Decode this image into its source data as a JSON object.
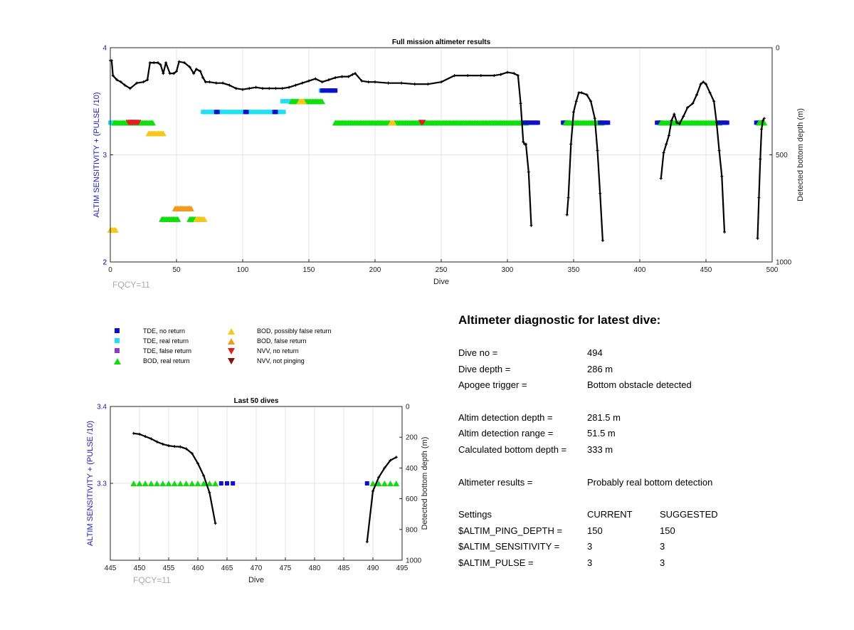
{
  "legend": [
    {
      "label": "TDE, no return",
      "shape": "square",
      "color": "#1010c8"
    },
    {
      "label": "TDE, real return",
      "shape": "square",
      "color": "#22dff2"
    },
    {
      "label": "TDE, false return",
      "shape": "square",
      "color": "#8a3cc8"
    },
    {
      "label": "BOD, real return",
      "shape": "triangle-up",
      "color": "#11dd11"
    },
    {
      "label": "BOD, possibly false return",
      "shape": "triangle-up",
      "color": "#f4c81c"
    },
    {
      "label": "BOD, false return",
      "shape": "triangle-up",
      "color": "#f39a1c"
    },
    {
      "label": "NVV, no return",
      "shape": "triangle-down",
      "color": "#e02020"
    },
    {
      "label": "NVV, not pinging",
      "shape": "triangle-down",
      "color": "#8a1010"
    }
  ],
  "diagnostic": {
    "title": "Altimeter diagnostic for latest dive:",
    "dive_no_label": "Dive no =",
    "dive_no": "494",
    "dive_depth_label": "Dive depth =",
    "dive_depth": "286 m",
    "apogee_label": "Apogee trigger =",
    "apogee": "Bottom obstacle detected",
    "altim_depth_label": "Altim detection depth =",
    "altim_depth": "281.5 m",
    "altim_range_label": "Altim detection range =",
    "altim_range": "51.5 m",
    "calc_bottom_label": "Calculated bottom depth =",
    "calc_bottom": "333 m",
    "results_label": "Altimeter results =",
    "results": "Probably real bottom detection",
    "settings_label": "Settings",
    "current_label": "CURRENT",
    "suggested_label": "SUGGESTED",
    "ping_depth_label": "$ALTIM_PING_DEPTH =",
    "ping_depth_current": "150",
    "ping_depth_suggested": "150",
    "sensitivity_label": "$ALTIM_SENSITIVITY =",
    "sensitivity_current": "3",
    "sensitivity_suggested": "3",
    "pulse_label": "$ALTIM_PULSE =",
    "pulse_current": "3",
    "pulse_suggested": "3"
  },
  "chart_data": [
    {
      "type": "scatter",
      "title": "Full mission altimeter results",
      "xlabel": "Dive",
      "ylabel": "ALTIM SENSITIVITY + (PULSE /10)",
      "y2label": "Detected bottom depth (m)",
      "note": "FQCY=11",
      "xlim": [
        0,
        500
      ],
      "ylim": [
        2,
        4
      ],
      "y2lim": [
        0,
        1000
      ],
      "y2_reversed": true,
      "xticks": [
        0,
        50,
        100,
        150,
        200,
        250,
        300,
        350,
        400,
        450,
        500
      ],
      "yticks": [
        2,
        3,
        4
      ],
      "y2ticks": [
        0,
        500,
        1000
      ],
      "grid": true,
      "marker_groups": [
        {
          "legend": 1,
          "y": 3.3,
          "x_range": [
            0,
            3
          ]
        },
        {
          "legend": 3,
          "y": 3.3,
          "x_range": [
            3,
            32
          ]
        },
        {
          "legend": 6,
          "y": 3.3,
          "x_range": [
            14,
            21
          ]
        },
        {
          "legend": 4,
          "y": 3.2,
          "x_range": [
            29,
            40
          ]
        },
        {
          "legend": 4,
          "y": 2.3,
          "x_range": [
            0,
            4
          ]
        },
        {
          "legend": 3,
          "y": 2.4,
          "x_range": [
            39,
            51
          ]
        },
        {
          "legend": 5,
          "y": 2.5,
          "x_range": [
            49,
            61
          ]
        },
        {
          "legend": 3,
          "y": 2.4,
          "x_range": [
            60,
            68
          ]
        },
        {
          "legend": 4,
          "y": 2.4,
          "x_range": [
            65,
            71
          ]
        },
        {
          "legend": 1,
          "y": 3.4,
          "x_range": [
            70,
            131
          ]
        },
        {
          "legend": 0,
          "y": 3.4,
          "x_range": [
            80,
            81
          ]
        },
        {
          "legend": 0,
          "y": 3.4,
          "x_range": [
            102,
            103
          ]
        },
        {
          "legend": 0,
          "y": 3.4,
          "x_range": [
            124,
            125
          ]
        },
        {
          "legend": 1,
          "y": 3.5,
          "x_range": [
            130,
            140
          ]
        },
        {
          "legend": 3,
          "y": 3.5,
          "x_range": [
            137,
            160
          ]
        },
        {
          "legend": 4,
          "y": 3.5,
          "x_range": [
            143,
            146
          ]
        },
        {
          "legend": 1,
          "y": 3.6,
          "x_range": [
            159,
            170
          ]
        },
        {
          "legend": 0,
          "y": 3.6,
          "x_range": [
            160,
            162
          ]
        },
        {
          "legend": 0,
          "y": 3.6,
          "x_range": [
            165,
            170
          ]
        },
        {
          "legend": 3,
          "y": 3.3,
          "x_range": [
            170,
            314
          ]
        },
        {
          "legend": 4,
          "y": 3.3,
          "x_range": [
            212,
            214
          ]
        },
        {
          "legend": 6,
          "y": 3.3,
          "x_range": [
            235,
            236
          ]
        },
        {
          "legend": 0,
          "y": 3.3,
          "x_range": [
            313,
            323
          ]
        },
        {
          "legend": 0,
          "y": 3.3,
          "x_range": [
            342,
            345
          ]
        },
        {
          "legend": 3,
          "y": 3.3,
          "x_range": [
            344,
            371
          ]
        },
        {
          "legend": 0,
          "y": 3.3,
          "x_range": [
            370,
            376
          ]
        },
        {
          "legend": 0,
          "y": 3.3,
          "x_range": [
            413,
            416
          ]
        },
        {
          "legend": 3,
          "y": 3.3,
          "x_range": [
            416,
            460
          ]
        },
        {
          "legend": 0,
          "y": 3.3,
          "x_range": [
            460,
            466
          ]
        },
        {
          "legend": 0,
          "y": 3.3,
          "x_range": [
            488,
            490
          ]
        },
        {
          "legend": 3,
          "y": 3.3,
          "x_range": [
            490,
            494
          ]
        }
      ],
      "bottom_depth_segments": [
        [
          [
            0,
            60
          ],
          [
            1,
            60
          ],
          [
            2,
            130
          ],
          [
            5,
            150
          ],
          [
            8,
            160
          ],
          [
            11,
            175
          ],
          [
            15,
            190
          ],
          [
            20,
            165
          ],
          [
            25,
            160
          ],
          [
            28,
            150
          ],
          [
            30,
            70
          ],
          [
            33,
            70
          ],
          [
            36,
            70
          ],
          [
            38,
            80
          ],
          [
            40,
            120
          ],
          [
            42,
            70
          ],
          [
            45,
            120
          ],
          [
            48,
            120
          ],
          [
            50,
            110
          ],
          [
            52,
            65
          ],
          [
            56,
            70
          ],
          [
            60,
            90
          ],
          [
            63,
            120
          ],
          [
            65,
            100
          ],
          [
            68,
            110
          ],
          [
            70,
            140
          ],
          [
            72,
            160
          ],
          [
            75,
            160
          ],
          [
            80,
            165
          ],
          [
            85,
            165
          ],
          [
            90,
            175
          ],
          [
            95,
            190
          ],
          [
            100,
            195
          ],
          [
            105,
            190
          ],
          [
            110,
            185
          ],
          [
            115,
            190
          ],
          [
            120,
            190
          ],
          [
            125,
            190
          ],
          [
            130,
            190
          ],
          [
            135,
            185
          ],
          [
            140,
            175
          ],
          [
            145,
            165
          ],
          [
            150,
            155
          ],
          [
            155,
            145
          ],
          [
            160,
            160
          ],
          [
            165,
            150
          ],
          [
            170,
            140
          ],
          [
            175,
            135
          ],
          [
            180,
            135
          ],
          [
            183,
            125
          ],
          [
            185,
            120
          ],
          [
            190,
            155
          ],
          [
            195,
            160
          ],
          [
            200,
            160
          ],
          [
            210,
            165
          ],
          [
            220,
            165
          ],
          [
            230,
            170
          ],
          [
            240,
            170
          ],
          [
            250,
            160
          ],
          [
            260,
            130
          ],
          [
            270,
            130
          ],
          [
            280,
            130
          ],
          [
            290,
            130
          ],
          [
            295,
            125
          ],
          [
            300,
            115
          ],
          [
            305,
            120
          ],
          [
            308,
            130
          ],
          [
            310,
            260
          ],
          [
            312,
            440
          ],
          [
            313,
            450
          ],
          [
            314,
            450
          ],
          [
            316,
            580
          ],
          [
            318,
            830
          ]
        ],
        [
          [
            345,
            780
          ],
          [
            346,
            700
          ],
          [
            348,
            450
          ],
          [
            350,
            300
          ],
          [
            352,
            250
          ],
          [
            354,
            210
          ],
          [
            356,
            210
          ],
          [
            360,
            220
          ],
          [
            363,
            250
          ],
          [
            366,
            330
          ],
          [
            368,
            480
          ],
          [
            370,
            680
          ],
          [
            372,
            900
          ]
        ],
        [
          [
            416,
            610
          ],
          [
            418,
            490
          ],
          [
            420,
            450
          ],
          [
            422,
            410
          ],
          [
            424,
            340
          ],
          [
            426,
            310
          ],
          [
            428,
            350
          ],
          [
            430,
            355
          ],
          [
            433,
            320
          ],
          [
            436,
            280
          ],
          [
            440,
            260
          ],
          [
            443,
            220
          ],
          [
            446,
            170
          ],
          [
            448,
            160
          ],
          [
            450,
            170
          ],
          [
            453,
            210
          ],
          [
            456,
            250
          ],
          [
            458,
            350
          ],
          [
            460,
            480
          ],
          [
            462,
            600
          ],
          [
            464,
            860
          ]
        ],
        [
          [
            489,
            890
          ],
          [
            490,
            700
          ],
          [
            491,
            520
          ],
          [
            492,
            380
          ],
          [
            493,
            340
          ],
          [
            494,
            330
          ]
        ]
      ]
    },
    {
      "type": "scatter",
      "title": "Last 50 dives",
      "xlabel": "Dive",
      "ylabel": "ALTIM SENSITIVITY + (PULSE /10)",
      "y2label": "Detected bottom depth (m)",
      "note": "FQCY=11",
      "xlim": [
        445,
        495
      ],
      "ylim": [
        3.2,
        3.4
      ],
      "y2lim": [
        0,
        1000
      ],
      "y2_reversed": true,
      "xticks": [
        445,
        450,
        455,
        460,
        465,
        470,
        475,
        480,
        485,
        490,
        495
      ],
      "yticks": [
        3.3,
        3.4
      ],
      "y2ticks": [
        0,
        200,
        400,
        600,
        800,
        1000
      ],
      "grid": true,
      "markers": [
        {
          "legend": 3,
          "y": 3.3,
          "x": [
            449,
            450,
            451,
            452,
            453,
            454,
            455,
            456,
            457,
            458,
            459,
            460,
            461,
            462,
            463
          ]
        },
        {
          "legend": 0,
          "y": 3.3,
          "x": [
            464,
            465,
            466
          ]
        },
        {
          "legend": 0,
          "y": 3.3,
          "x": [
            489
          ]
        },
        {
          "legend": 3,
          "y": 3.3,
          "x": [
            490,
            491,
            492,
            493,
            494
          ]
        }
      ],
      "bottom_depth_segments": [
        [
          [
            449,
            175
          ],
          [
            450,
            180
          ],
          [
            451,
            195
          ],
          [
            452,
            210
          ],
          [
            453,
            230
          ],
          [
            454,
            245
          ],
          [
            455,
            255
          ],
          [
            456,
            260
          ],
          [
            457,
            262
          ],
          [
            458,
            275
          ],
          [
            459,
            305
          ],
          [
            460,
            370
          ],
          [
            461,
            450
          ],
          [
            462,
            560
          ],
          [
            463,
            760
          ]
        ],
        [
          [
            489,
            880
          ],
          [
            490,
            550
          ],
          [
            491,
            460
          ],
          [
            492,
            400
          ],
          [
            493,
            350
          ],
          [
            494,
            330
          ]
        ]
      ]
    }
  ]
}
